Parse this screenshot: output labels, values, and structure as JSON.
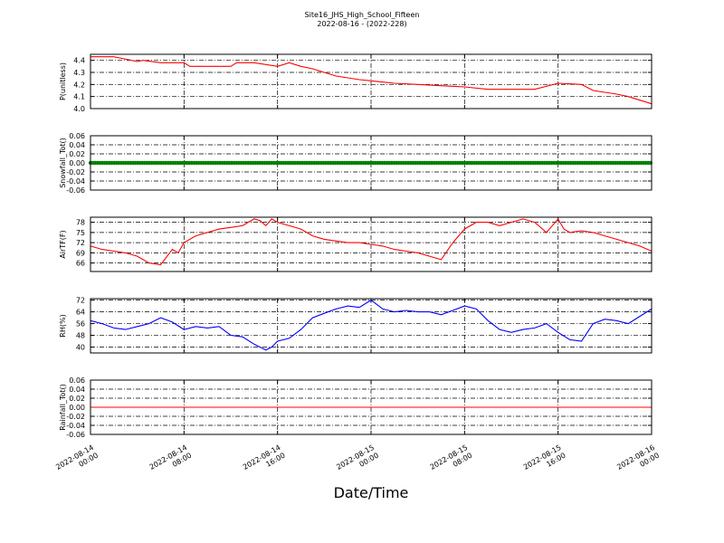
{
  "title": "Site16_JHS_High_School_Fifteen",
  "subtitle": "2022-08-16 - (2022-228)",
  "xlabel": "Date/Time",
  "x_ticks": [
    "2022-08-14\n00:00",
    "2022-08-14\n08:00",
    "2022-08-14\n16:00",
    "2022-08-15\n00:00",
    "2022-08-15\n08:00",
    "2022-08-15\n16:00",
    "2022-08-16\n00:00"
  ],
  "chart_data": [
    {
      "type": "line",
      "ylabel": "P(unitless)",
      "ylim": [
        4.0,
        4.45
      ],
      "yticks": [
        "4.0",
        "4.1",
        "4.2",
        "4.3",
        "4.4"
      ],
      "grid": true,
      "color": "#ff0000",
      "x_hours": [
        0,
        2,
        4,
        4.5,
        6,
        8,
        8.5,
        10,
        12,
        12.5,
        14,
        16,
        17,
        18,
        19,
        20,
        21,
        23,
        24,
        25,
        26,
        28,
        30,
        32,
        34,
        36,
        36.5,
        38,
        40,
        42,
        43,
        45,
        46,
        48
      ],
      "values": [
        4.43,
        4.43,
        4.39,
        4.4,
        4.38,
        4.38,
        4.35,
        4.35,
        4.35,
        4.38,
        4.38,
        4.35,
        4.38,
        4.35,
        4.33,
        4.3,
        4.27,
        4.24,
        4.23,
        4.22,
        4.21,
        4.2,
        4.19,
        4.18,
        4.16,
        4.16,
        4.16,
        4.16,
        4.21,
        4.2,
        4.15,
        4.12,
        4.1,
        4.04
      ]
    },
    {
      "type": "line",
      "ylabel": "Snowfall_Tot()",
      "ylim": [
        -0.06,
        0.06
      ],
      "yticks": [
        "-0.06",
        "-0.04",
        "-0.02",
        "0.00",
        "0.02",
        "0.04",
        "0.06"
      ],
      "grid": true,
      "color": "#008000",
      "marker": "dot",
      "x_hours": [
        0,
        48
      ],
      "values": [
        0.0,
        0.0
      ]
    },
    {
      "type": "line",
      "ylabel": "AirTF(F)",
      "ylim": [
        63.5,
        79.5
      ],
      "yticks": [
        "66",
        "69",
        "72",
        "75",
        "78"
      ],
      "grid": true,
      "color": "#ff0000",
      "x_hours": [
        0,
        1,
        2,
        3,
        4,
        5,
        6,
        7,
        7.5,
        8,
        9,
        10,
        11,
        12,
        13,
        14,
        14.5,
        15,
        15.5,
        16,
        17,
        18,
        19,
        20,
        21,
        22,
        23,
        24,
        25,
        26,
        27,
        28,
        29,
        30,
        31,
        32,
        33,
        34,
        35,
        36,
        37,
        38,
        39,
        40,
        40.5,
        41,
        42,
        43,
        44,
        45,
        46,
        47,
        48
      ],
      "values": [
        71,
        70,
        69.5,
        69,
        68,
        66,
        65.5,
        70,
        69,
        72,
        74,
        75,
        76,
        76.5,
        77,
        79,
        78.5,
        77,
        79,
        78,
        77,
        76,
        74,
        73,
        72.5,
        72,
        72,
        71.5,
        71,
        70,
        69.5,
        69,
        68,
        67,
        72,
        76,
        78,
        78,
        77,
        78,
        79,
        78,
        75,
        79,
        76,
        75,
        75.5,
        75,
        74,
        73,
        72,
        71,
        69.5
      ]
    },
    {
      "type": "line",
      "ylabel": "RH(%)",
      "ylim": [
        36,
        73
      ],
      "yticks": [
        "40",
        "48",
        "56",
        "64",
        "72"
      ],
      "grid": true,
      "color": "#0000ff",
      "x_hours": [
        0,
        1,
        2,
        3,
        4,
        5,
        6,
        7,
        8,
        9,
        10,
        11,
        12,
        13,
        14,
        15,
        15.5,
        16,
        17,
        18,
        19,
        20,
        21,
        22,
        23,
        24,
        25,
        26,
        27,
        28,
        29,
        30,
        31,
        32,
        33,
        34,
        35,
        36,
        37,
        38,
        39,
        40,
        41,
        42,
        43,
        44,
        45,
        46,
        47,
        48
      ],
      "values": [
        58,
        56,
        53,
        52,
        54,
        56,
        60,
        57,
        52,
        54,
        53,
        54,
        48,
        47,
        42,
        38,
        40,
        44,
        46,
        52,
        60,
        63,
        66,
        68,
        67,
        72,
        66,
        64,
        65,
        64,
        64,
        62,
        65,
        68,
        66,
        58,
        52,
        50,
        52,
        53,
        56,
        50,
        45,
        44,
        56,
        59,
        58,
        56,
        61,
        66
      ]
    },
    {
      "type": "line",
      "ylabel": "Rainfall_Tot()",
      "ylim": [
        -0.06,
        0.06
      ],
      "yticks": [
        "-0.06",
        "-0.04",
        "-0.02",
        "0.00",
        "0.02",
        "0.04",
        "0.06"
      ],
      "grid": true,
      "color": "#ff0000",
      "x_hours": [
        0,
        48
      ],
      "values": [
        0.0,
        0.0
      ]
    }
  ]
}
